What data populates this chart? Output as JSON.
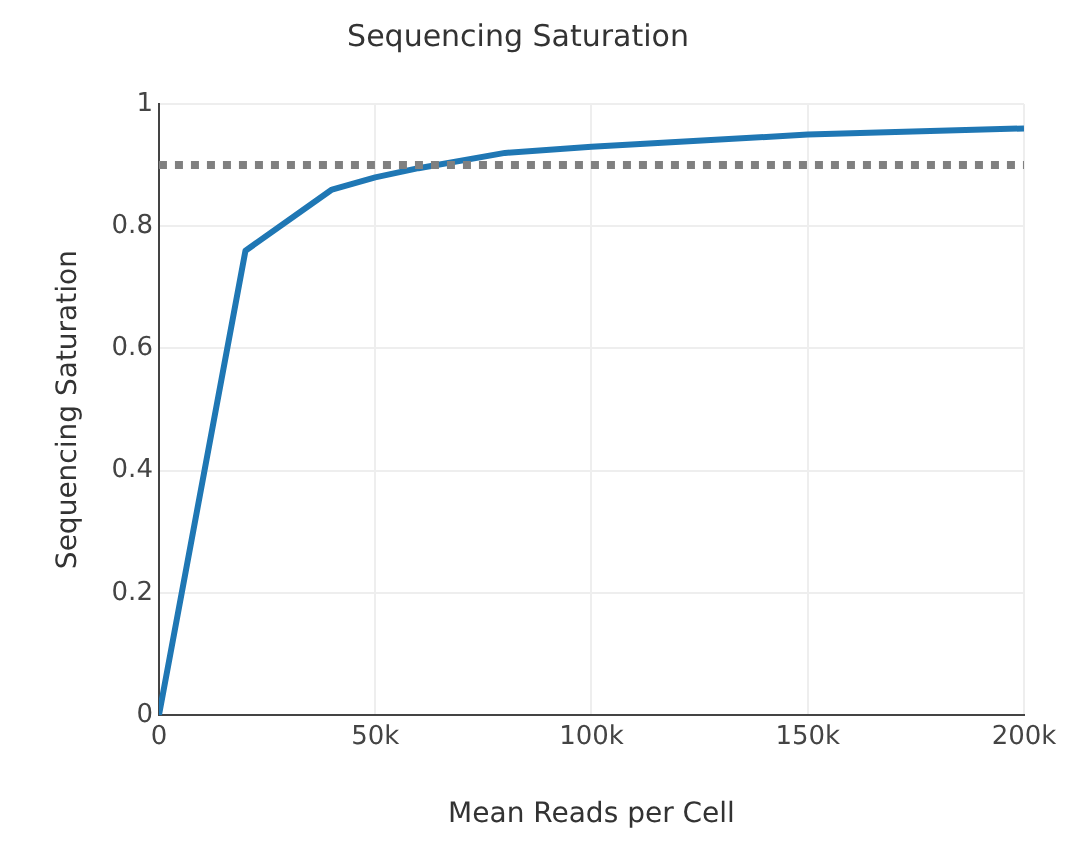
{
  "chart_data": {
    "type": "line",
    "title": "Sequencing Saturation",
    "xlabel": "Mean Reads per Cell",
    "ylabel": "Sequencing Saturation",
    "x": [
      0,
      20000,
      40000,
      50000,
      60000,
      80000,
      100000,
      150000,
      200000
    ],
    "series": [
      {
        "color": "#1f77b4",
        "values": [
          0,
          0.76,
          0.86,
          0.88,
          0.895,
          0.92,
          0.93,
          0.95,
          0.96
        ]
      }
    ],
    "xlim": [
      0,
      200000
    ],
    "xticks": [
      {
        "value": 0,
        "label": "0"
      },
      {
        "value": 50000,
        "label": "50k"
      },
      {
        "value": 100000,
        "label": "100k"
      },
      {
        "value": 150000,
        "label": "150k"
      },
      {
        "value": 200000,
        "label": "200k"
      }
    ],
    "ylim": [
      0,
      1
    ],
    "yticks": [
      0,
      0.2,
      0.4,
      0.6,
      0.8,
      1
    ],
    "ref_lines": [
      {
        "axis": "y",
        "value": 0.9,
        "color": "#808080",
        "line_style": "dotted"
      }
    ],
    "grid": true,
    "legend": false,
    "marker": "none",
    "line_style": "solid"
  }
}
